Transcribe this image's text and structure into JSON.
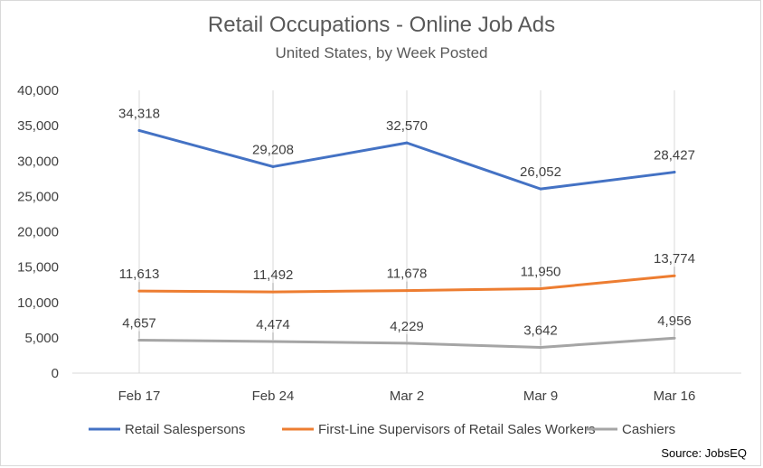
{
  "chart_data": {
    "type": "line",
    "title": "Retail Occupations - Online Job Ads",
    "subtitle": "United States, by Week Posted",
    "categories": [
      "Feb 17",
      "Feb 24",
      "Mar 2",
      "Mar 9",
      "Mar 16"
    ],
    "ylim": [
      0,
      40000
    ],
    "yticks": [
      0,
      5000,
      10000,
      15000,
      20000,
      25000,
      30000,
      35000,
      40000
    ],
    "ytick_labels": [
      "0",
      "5,000",
      "10,000",
      "15,000",
      "20,000",
      "25,000",
      "30,000",
      "35,000",
      "40,000"
    ],
    "grid": "vertical",
    "legend_position": "bottom",
    "series": [
      {
        "name": "Retail Salespersons",
        "color": "#4472c4",
        "values": [
          34318,
          29208,
          32570,
          26052,
          28427
        ],
        "labels": [
          "34,318",
          "29,208",
          "32,570",
          "26,052",
          "28,427"
        ]
      },
      {
        "name": "First-Line Supervisors of Retail Sales Workers",
        "color": "#ed7d31",
        "values": [
          11613,
          11492,
          11678,
          11950,
          13774
        ],
        "labels": [
          "11,613",
          "11,492",
          "11,678",
          "11,950",
          "13,774"
        ]
      },
      {
        "name": "Cashiers",
        "color": "#a5a5a5",
        "values": [
          4657,
          4474,
          4229,
          3642,
          4956
        ],
        "labels": [
          "4,657",
          "4,474",
          "4,229",
          "3,642",
          "4,956"
        ]
      }
    ],
    "source": "Source: JobsEQ"
  }
}
